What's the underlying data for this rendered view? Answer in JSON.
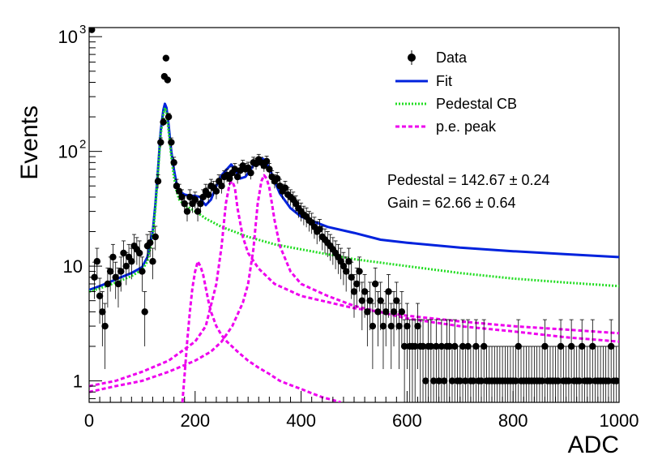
{
  "chart_data": {
    "type": "scatter",
    "xlabel": "ADC",
    "ylabel": "Events",
    "xlim": [
      0,
      1000
    ],
    "ylim": [
      0.65,
      1200
    ],
    "yscale": "log",
    "grid": false,
    "legend_position": "top-right",
    "x_ticks": [
      {
        "value": 0,
        "label": "0"
      },
      {
        "value": 200,
        "label": "200"
      },
      {
        "value": 400,
        "label": "400"
      },
      {
        "value": 600,
        "label": "600"
      },
      {
        "value": 800,
        "label": "800"
      },
      {
        "value": 1000,
        "label": "1000"
      }
    ],
    "y_ticks": [
      {
        "value": 1,
        "base": "1",
        "exp": ""
      },
      {
        "value": 10,
        "base": "10",
        "exp": ""
      },
      {
        "value": 100,
        "base": "10",
        "exp": "2"
      },
      {
        "value": 1000,
        "base": "10",
        "exp": "3"
      }
    ],
    "legend": [
      {
        "label": "Data",
        "style": "marker",
        "color": "#000000"
      },
      {
        "label": "Fit",
        "style": "solid",
        "color": "#0022dd"
      },
      {
        "label": "Pedestal CB",
        "style": "dotted",
        "color": "#22dd22"
      },
      {
        "label": "p.e. peak",
        "style": "dashed",
        "color": "#ee00ee"
      }
    ],
    "annotations": [
      "Pedestal = 142.67 ± 0.24",
      "Gain = 62.66 ± 0.64"
    ],
    "data_points": [
      [
        5,
        1150
      ],
      [
        10,
        8
      ],
      [
        15,
        11
      ],
      [
        20,
        5.5
      ],
      [
        25,
        4
      ],
      [
        30,
        3
      ],
      [
        35,
        7
      ],
      [
        40,
        9
      ],
      [
        45,
        12
      ],
      [
        50,
        8
      ],
      [
        55,
        7
      ],
      [
        60,
        9
      ],
      [
        65,
        13
      ],
      [
        70,
        10
      ],
      [
        75,
        12
      ],
      [
        80,
        11
      ],
      [
        85,
        15
      ],
      [
        90,
        14
      ],
      [
        95,
        13
      ],
      [
        100,
        9
      ],
      [
        105,
        4
      ],
      [
        110,
        15
      ],
      [
        115,
        16
      ],
      [
        120,
        11
      ],
      [
        125,
        18
      ],
      [
        130,
        55
      ],
      [
        135,
        120
      ],
      [
        140,
        180
      ],
      [
        142,
        450
      ],
      [
        145,
        650
      ],
      [
        148,
        420
      ],
      [
        150,
        200
      ],
      [
        155,
        120
      ],
      [
        160,
        80
      ],
      [
        165,
        50
      ],
      [
        170,
        45
      ],
      [
        175,
        40
      ],
      [
        180,
        35
      ],
      [
        185,
        30
      ],
      [
        190,
        40
      ],
      [
        195,
        35
      ],
      [
        200,
        38
      ],
      [
        205,
        30
      ],
      [
        210,
        35
      ],
      [
        215,
        40
      ],
      [
        220,
        45
      ],
      [
        225,
        42
      ],
      [
        230,
        50
      ],
      [
        235,
        48
      ],
      [
        240,
        45
      ],
      [
        245,
        55
      ],
      [
        250,
        50
      ],
      [
        255,
        60
      ],
      [
        260,
        62
      ],
      [
        265,
        58
      ],
      [
        270,
        65
      ],
      [
        275,
        70
      ],
      [
        280,
        60
      ],
      [
        285,
        68
      ],
      [
        290,
        75
      ],
      [
        295,
        70
      ],
      [
        300,
        72
      ],
      [
        305,
        65
      ],
      [
        310,
        80
      ],
      [
        315,
        78
      ],
      [
        320,
        85
      ],
      [
        325,
        80
      ],
      [
        330,
        75
      ],
      [
        335,
        82
      ],
      [
        340,
        70
      ],
      [
        345,
        60
      ],
      [
        350,
        55
      ],
      [
        355,
        58
      ],
      [
        360,
        50
      ],
      [
        365,
        45
      ],
      [
        370,
        48
      ],
      [
        375,
        42
      ],
      [
        380,
        40
      ],
      [
        385,
        38
      ],
      [
        390,
        35
      ],
      [
        395,
        32
      ],
      [
        400,
        30
      ],
      [
        405,
        28
      ],
      [
        410,
        27
      ],
      [
        415,
        25
      ],
      [
        420,
        24
      ],
      [
        425,
        22
      ],
      [
        430,
        20
      ],
      [
        435,
        21
      ],
      [
        440,
        18
      ],
      [
        445,
        17
      ],
      [
        450,
        16
      ],
      [
        455,
        15
      ],
      [
        460,
        14
      ],
      [
        465,
        13
      ],
      [
        470,
        12
      ],
      [
        475,
        11
      ],
      [
        480,
        10
      ],
      [
        485,
        9
      ],
      [
        490,
        11
      ],
      [
        495,
        8
      ],
      [
        500,
        6
      ],
      [
        505,
        7
      ],
      [
        510,
        9
      ],
      [
        515,
        5
      ],
      [
        520,
        6
      ],
      [
        525,
        4
      ],
      [
        530,
        5
      ],
      [
        535,
        3
      ],
      [
        540,
        7
      ],
      [
        545,
        4
      ],
      [
        550,
        5
      ],
      [
        555,
        3
      ],
      [
        560,
        4
      ],
      [
        565,
        6
      ],
      [
        570,
        3
      ],
      [
        575,
        4
      ],
      [
        580,
        5
      ],
      [
        585,
        3
      ],
      [
        590,
        4
      ],
      [
        595,
        2
      ],
      [
        600,
        3
      ],
      [
        605,
        2
      ],
      [
        610,
        2
      ],
      [
        615,
        2
      ],
      [
        620,
        3
      ],
      [
        625,
        2
      ],
      [
        630,
        2
      ],
      [
        635,
        1
      ],
      [
        640,
        2
      ],
      [
        645,
        2
      ],
      [
        650,
        1
      ],
      [
        655,
        2
      ],
      [
        660,
        1
      ],
      [
        665,
        2
      ],
      [
        670,
        1
      ],
      [
        675,
        2
      ],
      [
        680,
        2
      ],
      [
        685,
        1
      ],
      [
        690,
        2
      ],
      [
        695,
        1
      ],
      [
        700,
        1
      ],
      [
        705,
        2
      ],
      [
        710,
        1
      ],
      [
        715,
        2
      ],
      [
        720,
        1
      ],
      [
        725,
        1
      ],
      [
        730,
        2
      ],
      [
        735,
        1
      ],
      [
        740,
        1
      ],
      [
        745,
        2
      ],
      [
        750,
        1
      ],
      [
        755,
        1
      ],
      [
        760,
        1
      ],
      [
        765,
        1
      ],
      [
        770,
        1
      ],
      [
        775,
        1
      ],
      [
        780,
        1
      ],
      [
        785,
        1
      ],
      [
        790,
        1
      ],
      [
        795,
        1
      ],
      [
        800,
        1
      ],
      [
        805,
        1
      ],
      [
        810,
        2
      ],
      [
        815,
        1
      ],
      [
        820,
        1
      ],
      [
        825,
        1
      ],
      [
        830,
        1
      ],
      [
        835,
        1
      ],
      [
        840,
        1
      ],
      [
        845,
        1
      ],
      [
        850,
        1
      ],
      [
        855,
        1
      ],
      [
        860,
        2
      ],
      [
        865,
        1
      ],
      [
        870,
        1
      ],
      [
        875,
        1
      ],
      [
        880,
        1
      ],
      [
        885,
        1
      ],
      [
        890,
        2
      ],
      [
        895,
        1
      ],
      [
        900,
        1
      ],
      [
        905,
        1
      ],
      [
        910,
        2
      ],
      [
        915,
        1
      ],
      [
        920,
        1
      ],
      [
        925,
        1
      ],
      [
        930,
        2
      ],
      [
        935,
        1
      ],
      [
        940,
        1
      ],
      [
        945,
        1
      ],
      [
        950,
        2
      ],
      [
        955,
        1
      ],
      [
        960,
        1
      ],
      [
        965,
        1
      ],
      [
        970,
        1
      ],
      [
        975,
        1
      ],
      [
        980,
        1
      ],
      [
        985,
        2
      ],
      [
        990,
        1
      ],
      [
        995,
        1
      ]
    ],
    "series": [
      {
        "name": "Fit",
        "color": "#0022dd",
        "x": [
          0,
          20,
          40,
          60,
          80,
          100,
          110,
          120,
          125,
          130,
          135,
          140,
          143,
          146,
          150,
          155,
          160,
          165,
          170,
          180,
          190,
          200,
          210,
          215,
          220,
          230,
          240,
          250,
          260,
          268,
          275,
          285,
          295,
          305,
          315,
          325,
          330,
          340,
          350,
          360,
          380,
          400,
          450,
          500,
          550,
          600,
          700,
          800,
          900,
          1000
        ],
        "y": [
          6.2,
          6.7,
          7.3,
          8,
          8.7,
          9.8,
          12,
          20,
          35,
          70,
          150,
          230,
          260,
          240,
          170,
          100,
          70,
          52,
          45,
          42,
          41,
          41,
          40,
          36,
          34,
          38,
          50,
          62,
          70,
          77,
          70,
          58,
          60,
          70,
          82,
          87,
          85,
          72,
          55,
          43,
          32,
          27,
          22,
          19.5,
          17,
          16,
          14.5,
          13.5,
          12.7,
          12
        ]
      },
      {
        "name": "Pedestal CB",
        "color": "#22dd22",
        "x": [
          0,
          20,
          40,
          60,
          80,
          100,
          110,
          120,
          125,
          130,
          135,
          140,
          143,
          146,
          150,
          155,
          160,
          165,
          170,
          180,
          190,
          200,
          210,
          220,
          250,
          300,
          350,
          400,
          500,
          600,
          700,
          800,
          900,
          1000
        ],
        "y": [
          6,
          6.4,
          6.9,
          7.5,
          8.2,
          9.3,
          11,
          18,
          32,
          65,
          140,
          210,
          240,
          220,
          150,
          90,
          60,
          45,
          38,
          34,
          32,
          30,
          28,
          26,
          22,
          18,
          15.5,
          14,
          11.5,
          10,
          8.7,
          7.8,
          7.2,
          6.7
        ]
      },
      {
        "name": "p.e. peak 1",
        "color": "#ee00ee",
        "x": [
          176,
          180,
          185,
          190,
          195,
          200,
          205,
          210,
          215,
          220,
          225,
          230,
          240,
          250,
          260,
          280,
          300,
          320,
          340,
          360,
          380,
          400,
          420,
          440,
          460,
          475
        ],
        "y": [
          0.65,
          1.1,
          2.2,
          4,
          6.5,
          9,
          11,
          10,
          8.5,
          6.5,
          5,
          4,
          3,
          2.5,
          2.2,
          1.8,
          1.5,
          1.3,
          1.15,
          1.0,
          0.92,
          0.85,
          0.78,
          0.72,
          0.68,
          0.65
        ]
      },
      {
        "name": "p.e. peak 2",
        "color": "#ee00ee",
        "x": [
          0,
          50,
          100,
          150,
          200,
          220,
          240,
          250,
          258,
          265,
          270,
          275,
          280,
          290,
          300,
          320,
          350,
          400,
          500,
          600,
          700,
          800,
          900,
          1000
        ],
        "y": [
          0.9,
          1.0,
          1.2,
          1.5,
          2.2,
          3,
          7,
          15,
          35,
          52,
          55,
          48,
          32,
          18,
          13,
          9.5,
          7,
          5.5,
          4.3,
          3.7,
          3.3,
          3.0,
          2.8,
          2.6
        ]
      },
      {
        "name": "p.e. peak 3",
        "color": "#ee00ee",
        "x": [
          0,
          50,
          100,
          150,
          200,
          230,
          250,
          270,
          290,
          300,
          310,
          318,
          325,
          330,
          335,
          340,
          345,
          350,
          360,
          380,
          400,
          450,
          500,
          600,
          700,
          800,
          900,
          1000
        ],
        "y": [
          0.8,
          0.9,
          1.0,
          1.2,
          1.5,
          1.8,
          2.2,
          3,
          4.8,
          7,
          14,
          35,
          55,
          62,
          58,
          48,
          35,
          25,
          15,
          9,
          7,
          5.5,
          4.5,
          3.5,
          3.0,
          2.7,
          2.4,
          2.2
        ]
      }
    ]
  }
}
